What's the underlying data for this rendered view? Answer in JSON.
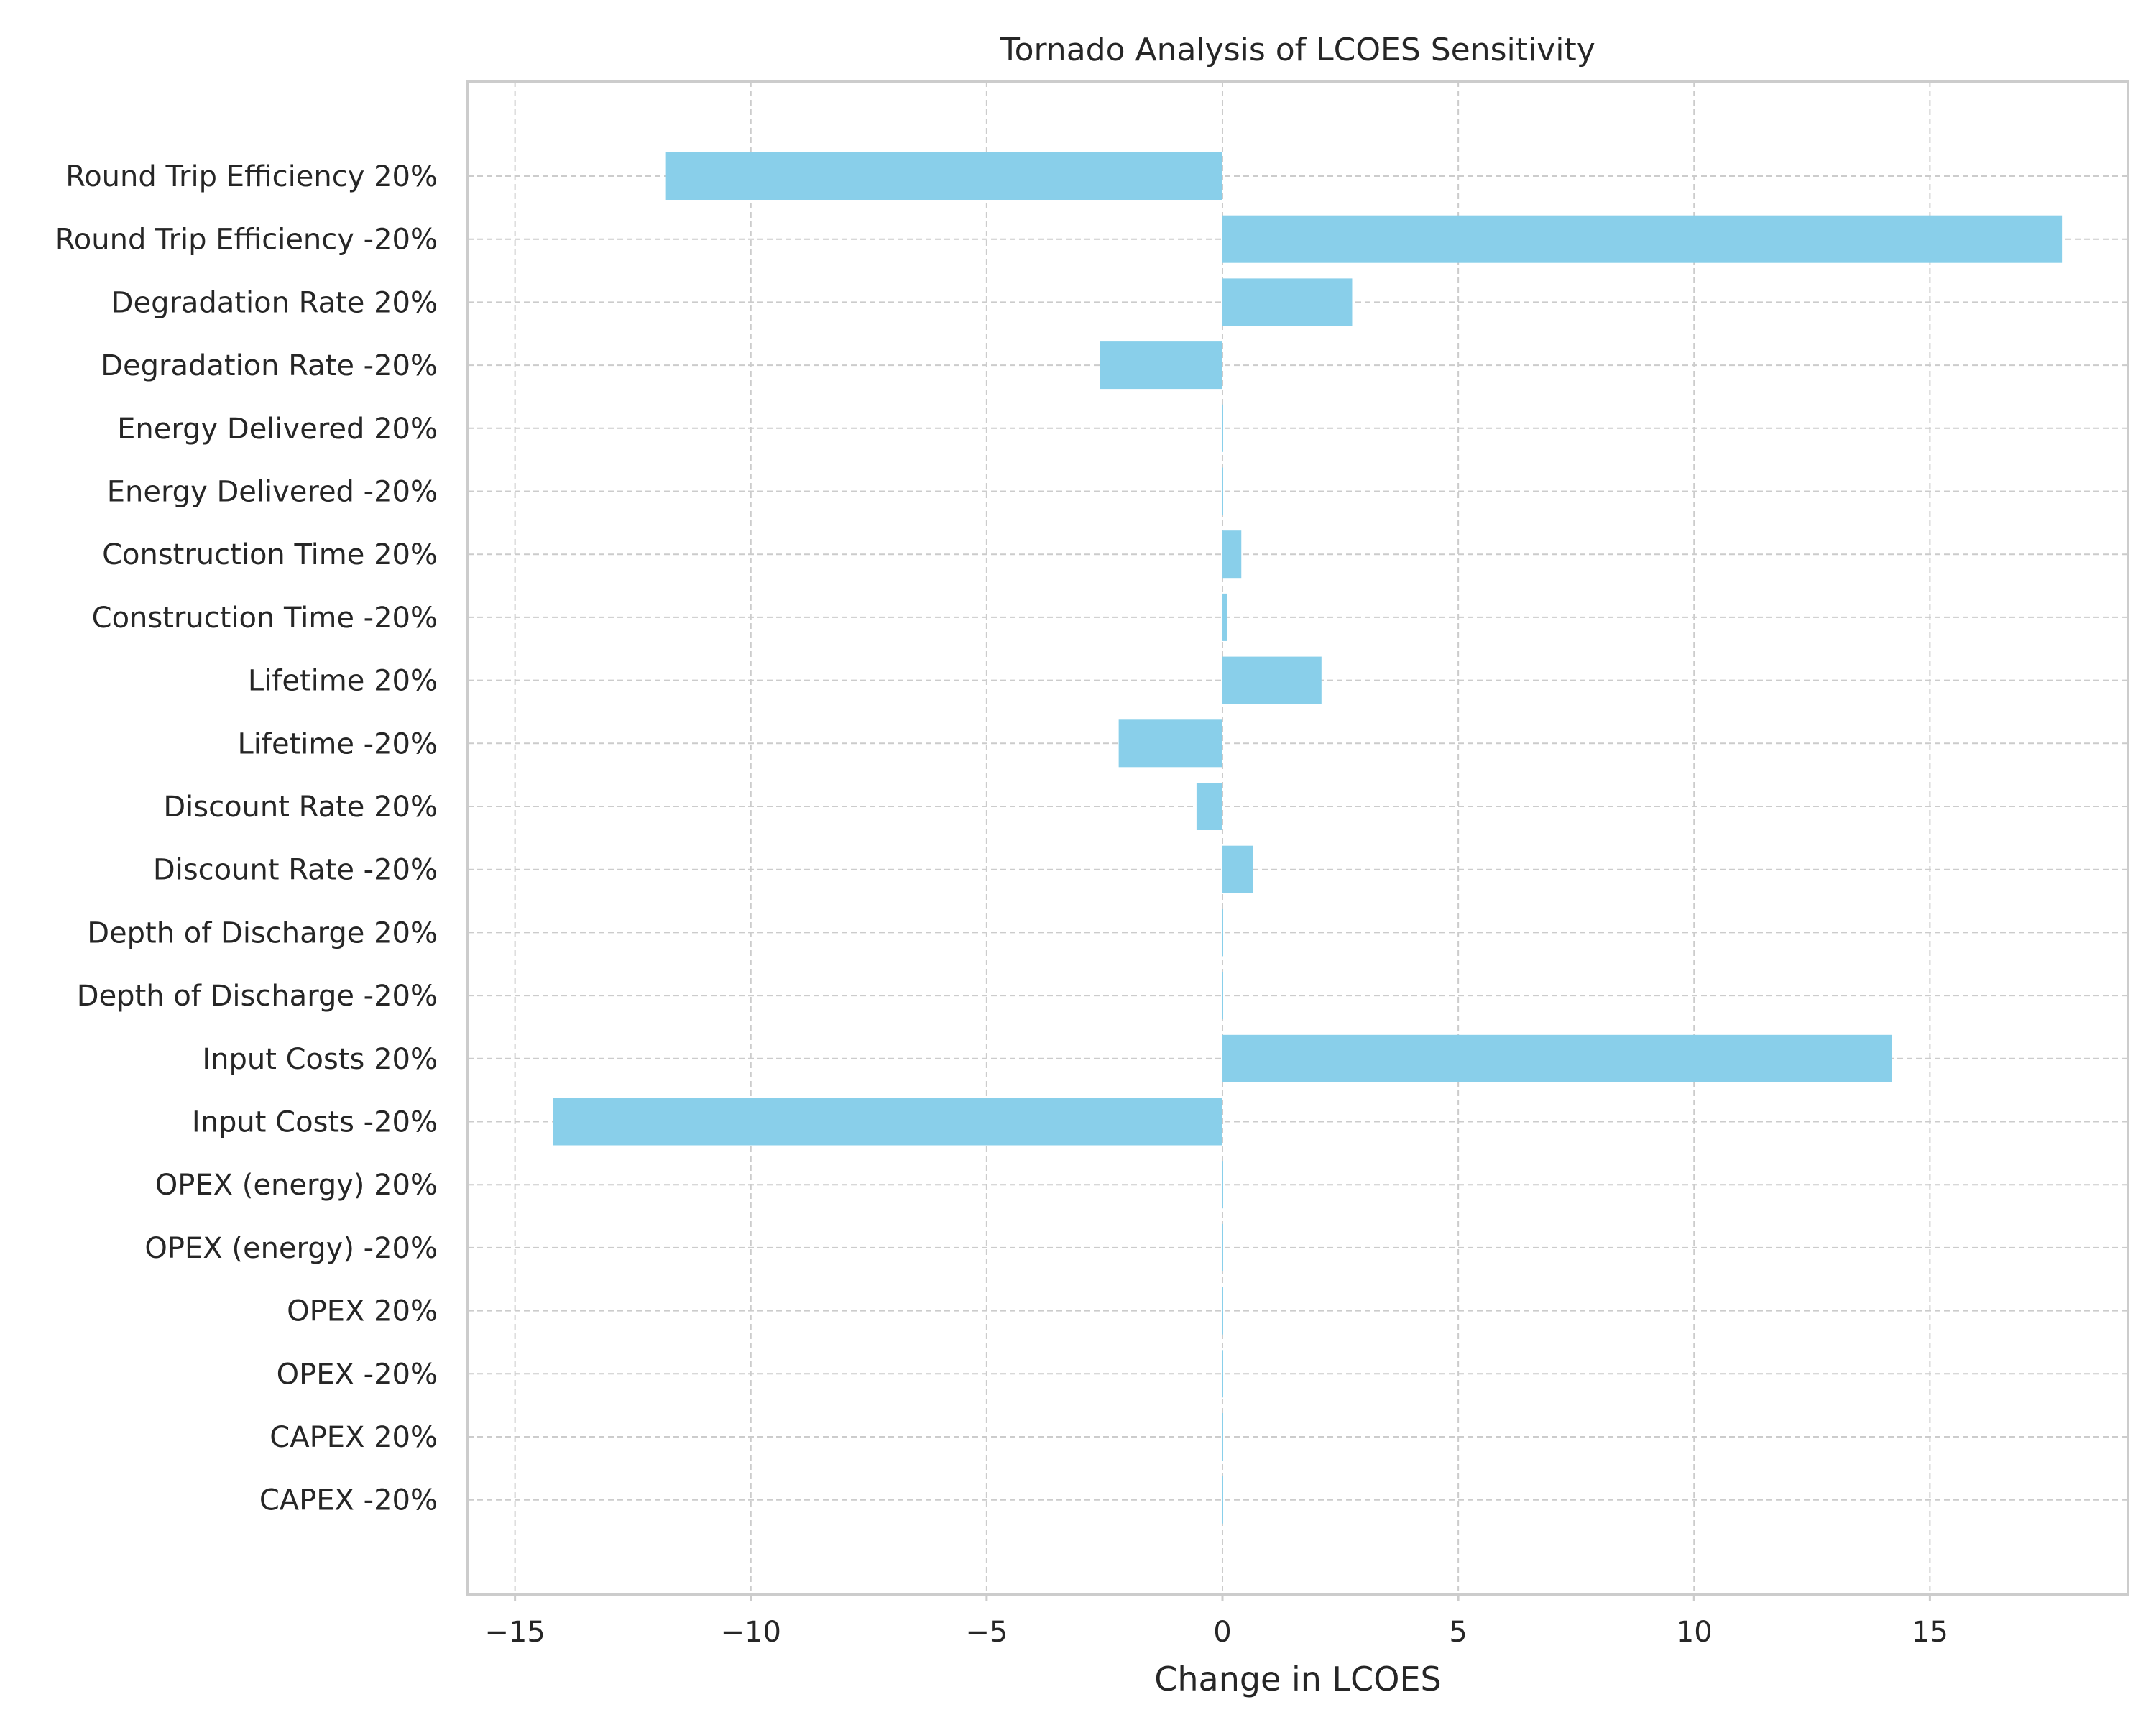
{
  "chart_data": {
    "type": "bar",
    "orientation": "horizontal",
    "title": "Tornado Analysis of LCOES Sensitivity",
    "xlabel": "Change in LCOES",
    "ylabel": "",
    "xlim": [
      -16.0,
      19.2
    ],
    "xticks": [
      -15,
      -10,
      -5,
      0,
      5,
      10,
      15
    ],
    "xtick_labels": [
      "−15",
      "−10",
      "−5",
      "0",
      "5",
      "10",
      "15"
    ],
    "grid": true,
    "bar_color": "#89CFEA",
    "categories": [
      "Round Trip Efficiency 20%",
      "Round Trip Efficiency -20%",
      "Degradation Rate 20%",
      "Degradation Rate -20%",
      "Energy Delivered 20%",
      "Energy Delivered -20%",
      "Construction Time 20%",
      "Construction Time -20%",
      "Lifetime 20%",
      "Lifetime -20%",
      "Discount Rate 20%",
      "Discount Rate -20%",
      "Depth of Discharge 20%",
      "Depth of Discharge -20%",
      "Input Costs 20%",
      "Input Costs -20%",
      "OPEX (energy) 20%",
      "OPEX (energy) -20%",
      "OPEX 20%",
      "OPEX -20%",
      "CAPEX 20%",
      "CAPEX -20%"
    ],
    "values": [
      -11.8,
      17.8,
      2.75,
      -2.6,
      0.0,
      0.0,
      0.4,
      0.1,
      2.1,
      -2.2,
      -0.55,
      0.65,
      0.0,
      0.0,
      14.2,
      -14.2,
      0.0,
      0.0,
      0.0,
      0.0,
      0.0,
      0.0
    ]
  }
}
